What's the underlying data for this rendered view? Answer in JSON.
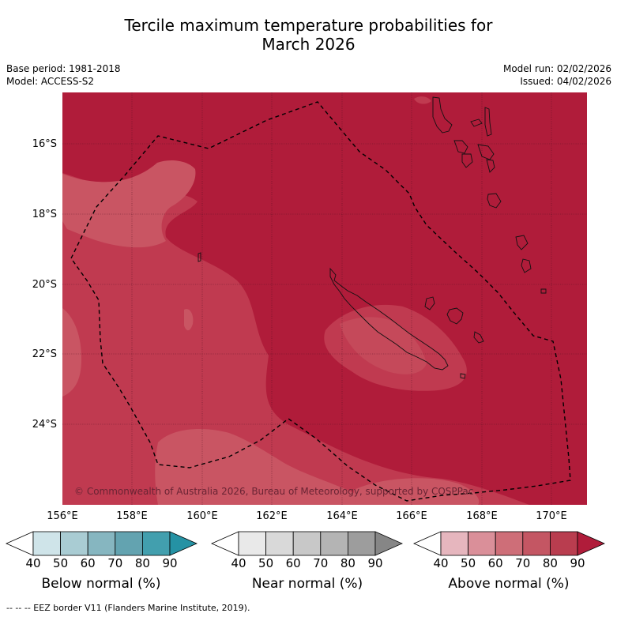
{
  "title": {
    "line1": "Tercile maximum temperature probabilities for",
    "line2": "March 2026"
  },
  "meta": {
    "base_period": "Base period: 1981-2018",
    "model": "Model: ACCESS-S2",
    "model_run": "Model run: 02/02/2026",
    "issued": "Issued: 04/02/2026"
  },
  "map": {
    "lat_labels": [
      "16°S",
      "18°S",
      "20°S",
      "22°S",
      "24°S"
    ],
    "lon_labels": [
      "156°E",
      "158°E",
      "160°E",
      "162°E",
      "164°E",
      "166°E",
      "168°E",
      "170°E"
    ],
    "copyright": "© Commonwealth of Australia 2026, Bureau of Meteorology, supported by COSPPac",
    "colors": {
      "above_90": "#b01c3a",
      "above_80": "#c03a50",
      "above_70": "#c95563"
    }
  },
  "colorbars": [
    {
      "title": "Below normal (%)",
      "ticks": [
        "40",
        "50",
        "60",
        "70",
        "80",
        "90"
      ],
      "colors": [
        "#ffffff",
        "#cfe4e9",
        "#a9ccd3",
        "#86b6c0",
        "#63a3b0",
        "#429fae",
        "#2592a4"
      ]
    },
    {
      "title": "Near normal (%)",
      "ticks": [
        "40",
        "50",
        "60",
        "70",
        "80",
        "90"
      ],
      "colors": [
        "#ffffff",
        "#e9e9e9",
        "#d9d9d9",
        "#c8c8c8",
        "#b4b4b4",
        "#9d9d9d",
        "#868686"
      ]
    },
    {
      "title": "Above normal (%)",
      "ticks": [
        "40",
        "50",
        "60",
        "70",
        "80",
        "90"
      ],
      "colors": [
        "#ffffff",
        "#e6b6be",
        "#da8f99",
        "#ce6e78",
        "#c45663",
        "#b93d4f",
        "#b01c3a"
      ]
    }
  ],
  "footer": "--  --  -- EEZ border V11 (Flanders Marine Institute, 2019)."
}
